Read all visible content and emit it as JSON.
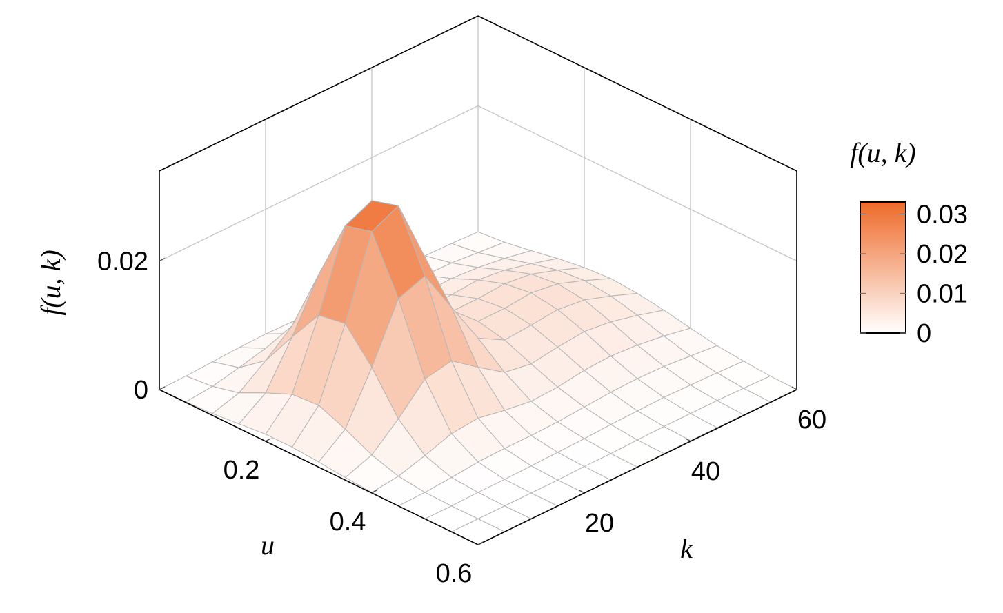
{
  "chart_data": {
    "type": "surface",
    "xlabel": "u",
    "ylabel": "k",
    "zlabel": "f(u, k)",
    "colorbar_title": "f(u, k)",
    "x": [
      0,
      0.05,
      0.1,
      0.15,
      0.2,
      0.25,
      0.3,
      0.35,
      0.4,
      0.45,
      0.5,
      0.55,
      0.6
    ],
    "y": [
      0,
      5,
      10,
      15,
      20,
      25,
      30,
      35,
      40,
      45,
      50,
      55,
      60
    ],
    "z": [
      [
        0.0,
        0.0001,
        0.0003,
        0.0005,
        0.0006,
        0.0005,
        0.0005,
        0.0006,
        0.0007,
        0.0008,
        0.0007,
        0.0006,
        0.0004
      ],
      [
        0.0001,
        0.0005,
        0.0014,
        0.0024,
        0.0027,
        0.002,
        0.0014,
        0.0014,
        0.0016,
        0.0017,
        0.0016,
        0.0012,
        0.0008
      ],
      [
        0.0003,
        0.0015,
        0.0045,
        0.0079,
        0.0086,
        0.006,
        0.0034,
        0.0027,
        0.003,
        0.0032,
        0.0029,
        0.0023,
        0.0015
      ],
      [
        0.0007,
        0.0035,
        0.0102,
        0.0179,
        0.0192,
        0.013,
        0.0067,
        0.0045,
        0.0047,
        0.005,
        0.0045,
        0.0035,
        0.0023
      ],
      [
        0.0011,
        0.0053,
        0.0156,
        0.0275,
        0.0294,
        0.0197,
        0.0098,
        0.0061,
        0.0061,
        0.0064,
        0.0059,
        0.0045,
        0.0029
      ],
      [
        0.0011,
        0.0056,
        0.0163,
        0.0286,
        0.0306,
        0.0206,
        0.0103,
        0.0066,
        0.0066,
        0.007,
        0.0064,
        0.0049,
        0.0032
      ],
      [
        0.0008,
        0.0039,
        0.0115,
        0.0202,
        0.0217,
        0.0148,
        0.008,
        0.0057,
        0.006,
        0.0064,
        0.0059,
        0.0045,
        0.0029
      ],
      [
        0.0004,
        0.0019,
        0.0055,
        0.0097,
        0.0105,
        0.0075,
        0.0047,
        0.004,
        0.0046,
        0.005,
        0.0045,
        0.0035,
        0.0023
      ],
      [
        0.0001,
        0.0006,
        0.0018,
        0.0032,
        0.0036,
        0.0028,
        0.0022,
        0.0024,
        0.003,
        0.0032,
        0.0029,
        0.0023,
        0.0015
      ],
      [
        0.0,
        0.0001,
        0.0004,
        0.0008,
        0.0009,
        0.0009,
        0.001,
        0.0013,
        0.0016,
        0.0017,
        0.0016,
        0.0012,
        0.0008
      ],
      [
        0.0,
        0.0,
        0.0001,
        0.0001,
        0.0002,
        0.0003,
        0.0004,
        0.0006,
        0.0007,
        0.0008,
        0.0007,
        0.0006,
        0.0004
      ],
      [
        0.0,
        0.0,
        0.0,
        0.0,
        0.0,
        0.0001,
        0.0001,
        0.0002,
        0.0003,
        0.0003,
        0.0003,
        0.0002,
        0.0001
      ],
      [
        0.0,
        0.0,
        0.0,
        0.0,
        0.0,
        0.0,
        0.0,
        0.0001,
        0.0001,
        0.0001,
        0.0001,
        0.0001,
        0.0
      ]
    ],
    "xlim": [
      0,
      0.6
    ],
    "xticks": [
      0.2,
      0.4,
      0.6
    ],
    "ylim": [
      0,
      60
    ],
    "yticks": [
      20,
      40,
      60
    ],
    "zlim": [
      0,
      0.034
    ],
    "zticks": [
      0,
      0.02
    ],
    "clim": [
      0,
      0.033
    ],
    "cticks": [
      0,
      0.01,
      0.02,
      0.03
    ],
    "colormap": [
      "#ffffff",
      "#ee6a2a"
    ],
    "mesh_color": "#b8b8b8",
    "grid": true
  }
}
